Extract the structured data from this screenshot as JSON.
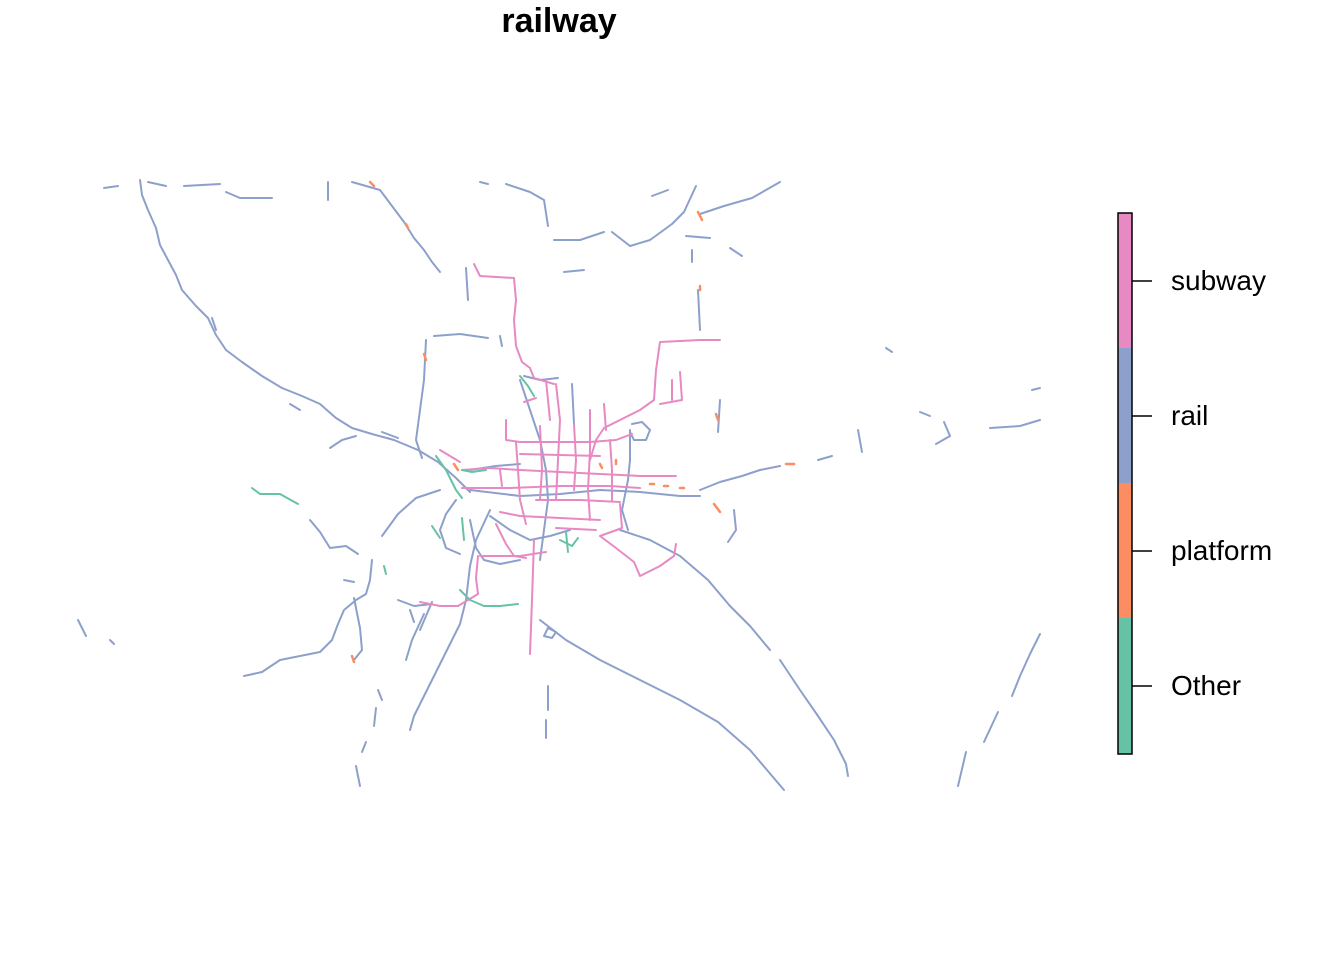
{
  "title": "railway",
  "legend": {
    "items": [
      {
        "label": "subway",
        "color": "#E78AC3"
      },
      {
        "label": "rail",
        "color": "#8DA0CB"
      },
      {
        "label": "platform",
        "color": "#FC8D62"
      },
      {
        "label": "Other",
        "color": "#66C2A5"
      }
    ]
  },
  "colors": {
    "subway": "#E78AC3",
    "rail": "#8DA0CB",
    "platform": "#FC8D62",
    "other": "#66C2A5"
  }
}
